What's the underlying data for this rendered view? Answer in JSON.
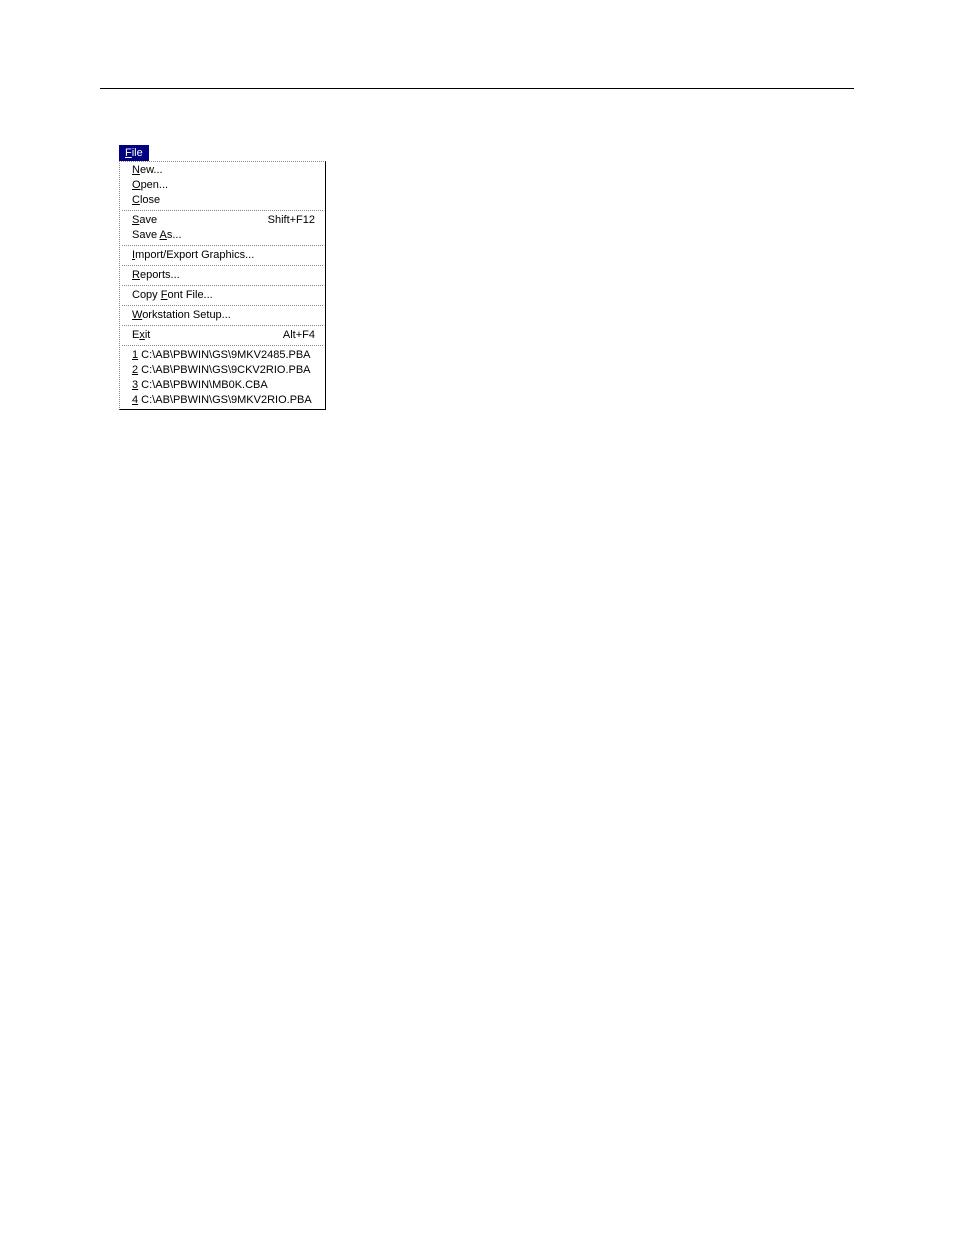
{
  "menu": {
    "title_html": "<span class='underline'>F</span>ile",
    "groups": [
      [
        {
          "label_html": "<span class='underline'>N</span>ew...",
          "shortcut": ""
        },
        {
          "label_html": "<span class='underline'>O</span>pen...",
          "shortcut": ""
        },
        {
          "label_html": "<span class='underline'>C</span>lose",
          "shortcut": ""
        }
      ],
      [
        {
          "label_html": "<span class='underline'>S</span>ave",
          "shortcut": "Shift+F12"
        },
        {
          "label_html": "Save <span class='underline'>A</span>s...",
          "shortcut": ""
        }
      ],
      [
        {
          "label_html": "<span class='underline'>I</span>mport/Export Graphics...",
          "shortcut": ""
        }
      ],
      [
        {
          "label_html": "<span class='underline'>R</span>eports...",
          "shortcut": ""
        }
      ],
      [
        {
          "label_html": "Copy <span class='underline'>F</span>ont File...",
          "shortcut": ""
        }
      ],
      [
        {
          "label_html": "<span class='underline'>W</span>orkstation Setup...",
          "shortcut": ""
        }
      ],
      [
        {
          "label_html": "E<span class='underline'>x</span>it",
          "shortcut": "Alt+F4"
        }
      ],
      [
        {
          "label_html": "<span class='underline'>1</span> C:\\AB\\PBWIN\\GS\\9MKV2485.PBA",
          "shortcut": ""
        },
        {
          "label_html": "<span class='underline'>2</span> C:\\AB\\PBWIN\\GS\\9CKV2RIO.PBA",
          "shortcut": ""
        },
        {
          "label_html": "<span class='underline'>3</span> C:\\AB\\PBWIN\\MB0K.CBA",
          "shortcut": ""
        },
        {
          "label_html": "<span class='underline'>4</span> C:\\AB\\PBWIN\\GS\\9MKV2RIO.PBA",
          "shortcut": ""
        }
      ]
    ]
  }
}
